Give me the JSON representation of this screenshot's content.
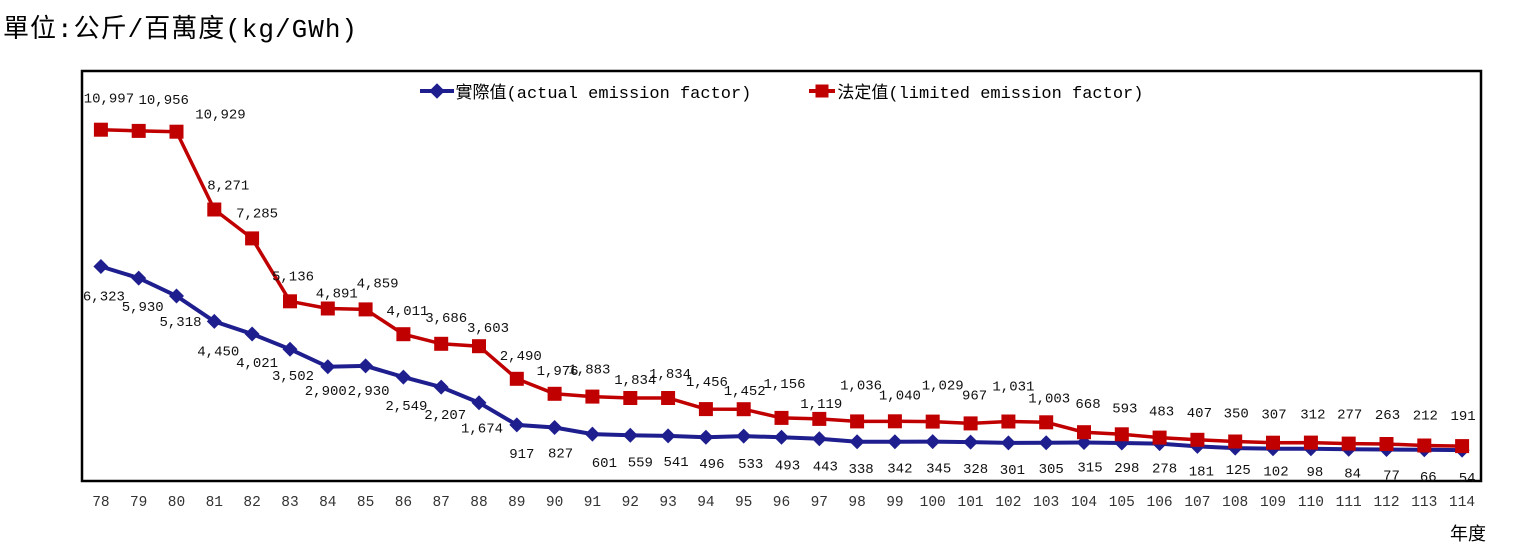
{
  "title": "單位:公斤/百萬度(kg/GWh)",
  "chart_data": {
    "type": "line",
    "title": "單位:公斤/百萬度(kg/GWh)",
    "xlabel": "年度",
    "ylabel": "",
    "ylim": [
      -1000,
      13000
    ],
    "grid": false,
    "legend_position": "top-center",
    "data_labels": true,
    "categories": [
      "78",
      "79",
      "80",
      "81",
      "82",
      "83",
      "84",
      "85",
      "86",
      "87",
      "88",
      "89",
      "90",
      "91",
      "92",
      "93",
      "94",
      "95",
      "96",
      "97",
      "98",
      "99",
      "100",
      "101",
      "102",
      "103",
      "104",
      "105",
      "106",
      "107",
      "108",
      "109",
      "110",
      "111",
      "112",
      "113",
      "114"
    ],
    "series": [
      {
        "name": "實際值(actual emission factor)",
        "marker": "diamond",
        "color": "#1e1e8f",
        "values": [
          6323,
          5930,
          5318,
          4450,
          4021,
          3502,
          2900,
          2930,
          2549,
          2207,
          1674,
          917,
          827,
          601,
          559,
          541,
          496,
          533,
          493,
          443,
          338,
          342,
          345,
          328,
          301,
          305,
          315,
          298,
          278,
          181,
          125,
          102,
          98,
          84,
          77,
          66,
          54
        ],
        "label_offsets": [
          [
            3,
            34
          ],
          [
            4,
            33
          ],
          [
            4,
            30
          ],
          [
            4,
            34
          ],
          [
            5,
            33
          ],
          [
            3,
            31
          ],
          [
            -2,
            28
          ],
          [
            3,
            29
          ],
          [
            3,
            33
          ],
          [
            4,
            32
          ],
          [
            3,
            30
          ],
          [
            5,
            33
          ],
          [
            6,
            30
          ],
          [
            12,
            33
          ],
          [
            10,
            31
          ],
          [
            8,
            30
          ],
          [
            6,
            31
          ],
          [
            7,
            32
          ],
          [
            6,
            32
          ],
          [
            6,
            32
          ],
          [
            4,
            31
          ],
          [
            5,
            31
          ],
          [
            6,
            31
          ],
          [
            5,
            31
          ],
          [
            4,
            31
          ],
          [
            5,
            30
          ],
          [
            6,
            29
          ],
          [
            5,
            29
          ],
          [
            5,
            29
          ],
          [
            4,
            29
          ],
          [
            3,
            26
          ],
          [
            3,
            27
          ],
          [
            4,
            27
          ],
          [
            4,
            28
          ],
          [
            5,
            30
          ],
          [
            4,
            31
          ],
          [
            5,
            32
          ]
        ]
      },
      {
        "name": "法定值(limited emission factor)",
        "marker": "square",
        "color": "#c00000",
        "values": [
          10997,
          10956,
          10929,
          8271,
          7285,
          5136,
          4891,
          4859,
          4011,
          3686,
          3603,
          2490,
          1976,
          1883,
          1834,
          1834,
          1456,
          1452,
          1156,
          1119,
          1036,
          1040,
          1029,
          967,
          1031,
          1003,
          668,
          593,
          483,
          407,
          350,
          307,
          312,
          277,
          263,
          212,
          191
        ],
        "label_offsets": [
          [
            8,
            -27
          ],
          [
            25,
            -27
          ],
          [
            44,
            -13
          ],
          [
            14,
            -20
          ],
          [
            5,
            -21
          ],
          [
            3,
            -21
          ],
          [
            9,
            -11
          ],
          [
            12,
            -22
          ],
          [
            4,
            -19
          ],
          [
            5,
            -22
          ],
          [
            9,
            -14
          ],
          [
            4,
            -19
          ],
          [
            3,
            -19
          ],
          [
            -3,
            -23
          ],
          [
            5,
            -14
          ],
          [
            2,
            -20
          ],
          [
            1,
            -23
          ],
          [
            1,
            -14
          ],
          [
            3,
            -30
          ],
          [
            2,
            -11
          ],
          [
            4,
            -32
          ],
          [
            5,
            -22
          ],
          [
            10,
            -32
          ],
          [
            4,
            -24
          ],
          [
            5,
            -31
          ],
          [
            3,
            -20
          ],
          [
            4,
            -24
          ],
          [
            3,
            -22
          ],
          [
            2,
            -22
          ],
          [
            2,
            -23
          ],
          [
            1,
            -24
          ],
          [
            1,
            -24
          ],
          [
            2,
            -24
          ],
          [
            1,
            -25
          ],
          [
            1,
            -25
          ],
          [
            1,
            -26
          ],
          [
            1,
            -26
          ]
        ]
      }
    ],
    "axis": {
      "frame_color": "#000000",
      "tick_color": "#333333",
      "data_label_color": "#111111"
    }
  }
}
